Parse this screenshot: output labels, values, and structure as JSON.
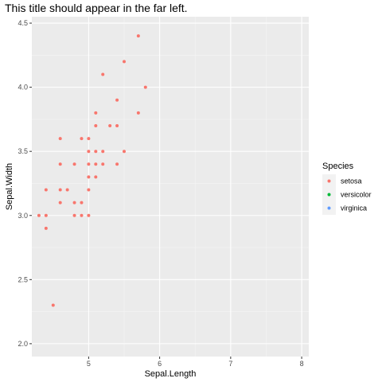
{
  "chart_data": {
    "type": "scatter",
    "title": "This title should appear in the far left.",
    "xlabel": "Sepal.Length",
    "ylabel": "Sepal.Width",
    "xlim": [
      4.2,
      8.1
    ],
    "ylim": [
      1.9,
      4.55
    ],
    "x_ticks": [
      5,
      6,
      7,
      8
    ],
    "y_ticks": [
      2.0,
      2.5,
      3.0,
      3.5,
      4.0,
      4.5
    ],
    "y_tick_labels": [
      "2.0",
      "2.5",
      "3.0",
      "3.5",
      "4.0",
      "4.5"
    ],
    "grid": true,
    "background": "#ebebeb",
    "legend": {
      "title": "Species",
      "placement": "right",
      "entries": [
        {
          "name": "setosa",
          "color": "#F8766D"
        },
        {
          "name": "versicolor",
          "color": "#00BA38"
        },
        {
          "name": "virginica",
          "color": "#619CFF"
        }
      ]
    },
    "series": [
      {
        "name": "setosa",
        "color": "#F8766D",
        "points": [
          [
            4.3,
            3.0
          ],
          [
            4.4,
            2.9
          ],
          [
            4.4,
            3.0
          ],
          [
            4.4,
            3.2
          ],
          [
            4.5,
            2.3
          ],
          [
            4.6,
            3.1
          ],
          [
            4.6,
            3.2
          ],
          [
            4.6,
            3.4
          ],
          [
            4.6,
            3.6
          ],
          [
            4.7,
            3.2
          ],
          [
            4.8,
            3.0
          ],
          [
            4.8,
            3.1
          ],
          [
            4.8,
            3.4
          ],
          [
            4.9,
            3.0
          ],
          [
            4.9,
            3.1
          ],
          [
            4.9,
            3.6
          ],
          [
            5.0,
            3.0
          ],
          [
            5.0,
            3.2
          ],
          [
            5.0,
            3.3
          ],
          [
            5.0,
            3.4
          ],
          [
            5.0,
            3.5
          ],
          [
            5.0,
            3.6
          ],
          [
            5.1,
            3.3
          ],
          [
            5.1,
            3.4
          ],
          [
            5.1,
            3.5
          ],
          [
            5.1,
            3.7
          ],
          [
            5.1,
            3.8
          ],
          [
            5.2,
            3.4
          ],
          [
            5.2,
            3.5
          ],
          [
            5.2,
            4.1
          ],
          [
            5.3,
            3.7
          ],
          [
            5.4,
            3.4
          ],
          [
            5.4,
            3.7
          ],
          [
            5.4,
            3.9
          ],
          [
            5.5,
            3.5
          ],
          [
            5.5,
            4.2
          ],
          [
            5.7,
            3.8
          ],
          [
            5.7,
            4.4
          ],
          [
            5.8,
            4.0
          ]
        ]
      },
      {
        "name": "versicolor",
        "color": "#00BA38",
        "points": []
      },
      {
        "name": "virginica",
        "color": "#619CFF",
        "points": []
      }
    ]
  }
}
